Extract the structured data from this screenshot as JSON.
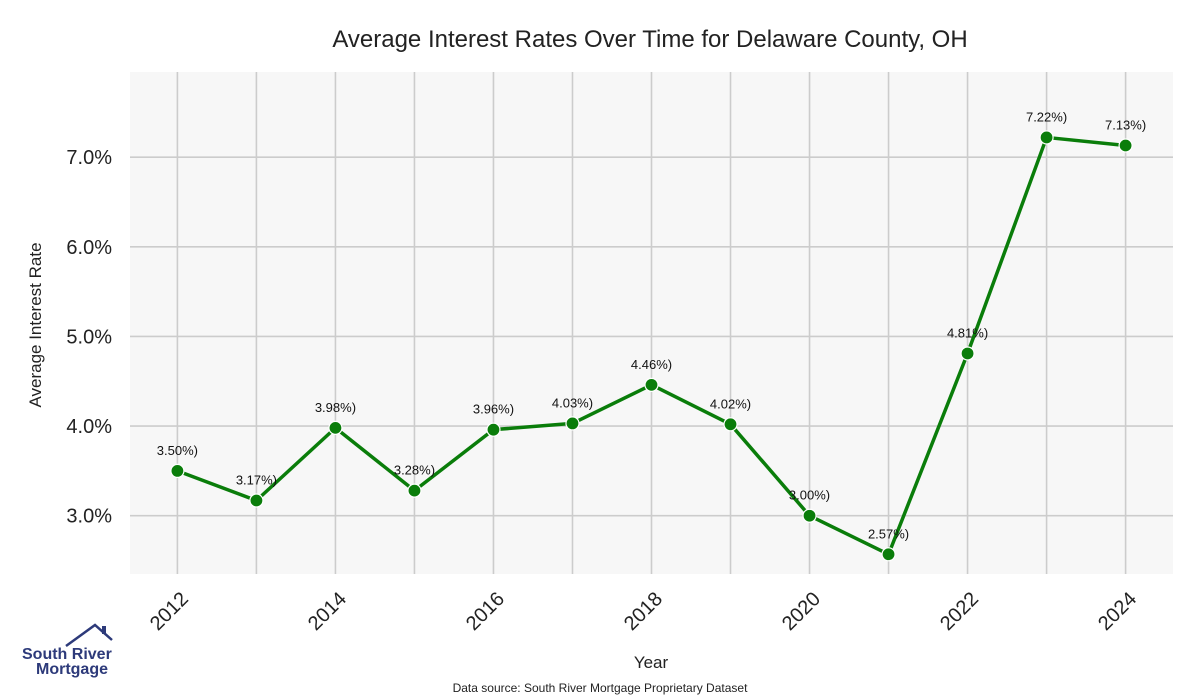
{
  "colors": {
    "line": "#0a7d0a",
    "plot_bg": "#f7f7f7",
    "grid": "#cccccc",
    "brand": "#2d3a7a"
  },
  "logo": {
    "line1": "South River",
    "line2": "Mortgage",
    "icon": "house-roof-icon"
  },
  "source_text": "Data source: South River Mortgage Proprietary Dataset",
  "chart_data": {
    "type": "line",
    "title": "Average Interest Rates Over Time for Delaware County, OH",
    "xlabel": "Year",
    "ylabel": "Average Interest Rate",
    "x": [
      2012,
      2013,
      2014,
      2015,
      2016,
      2017,
      2018,
      2019,
      2020,
      2021,
      2022,
      2023,
      2024
    ],
    "y": [
      3.5,
      3.17,
      3.98,
      3.28,
      3.96,
      4.03,
      4.46,
      4.02,
      3.0,
      2.57,
      4.81,
      7.22,
      7.13
    ],
    "point_labels": [
      "3.50%)",
      "3.17%)",
      "3.98%)",
      "3.28%)",
      "3.96%)",
      "4.03%)",
      "4.46%)",
      "4.02%)",
      "3.00%)",
      "2.57%)",
      "4.81%)",
      "7.22%)",
      "7.13%)"
    ],
    "xticks": [
      "2012",
      "2014",
      "2016",
      "2018",
      "2020",
      "2022",
      "2024"
    ],
    "yticks": [
      "3.0%",
      "4.0%",
      "5.0%",
      "6.0%",
      "7.0%"
    ],
    "xlim": [
      2011.4,
      2024.6
    ],
    "ylim": [
      2.35,
      7.95
    ],
    "grid": true,
    "legend": "none"
  }
}
